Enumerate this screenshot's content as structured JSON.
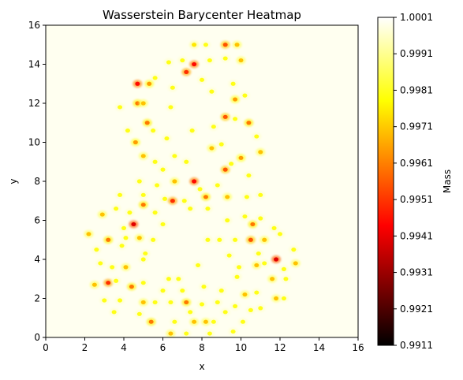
{
  "chart_data": {
    "type": "heatmap",
    "title": "Wasserstein Barycenter Heatmap",
    "xlabel": "x",
    "ylabel": "y",
    "xlim": [
      0,
      16
    ],
    "ylim": [
      0,
      16
    ],
    "x_ticks": [
      "0",
      "2",
      "4",
      "6",
      "8",
      "10",
      "12",
      "14",
      "16"
    ],
    "y_ticks": [
      "0",
      "2",
      "4",
      "6",
      "8",
      "10",
      "12",
      "14",
      "16"
    ],
    "colorbar": {
      "label": "Mass",
      "colormap": "hot",
      "range": [
        0.9911,
        1.0001
      ],
      "ticks": [
        "1.0001",
        "0.9991",
        "0.9981",
        "0.9971",
        "0.9961",
        "0.9951",
        "0.9941",
        "0.9931",
        "0.9921",
        "0.9911"
      ]
    },
    "background_value": 1.0001,
    "grid": false,
    "hotspots": [
      {
        "x": 7.6,
        "y": 15.0,
        "v": 0.9975
      },
      {
        "x": 8.2,
        "y": 15.0,
        "v": 0.998
      },
      {
        "x": 9.2,
        "y": 15.0,
        "v": 0.9955
      },
      {
        "x": 9.8,
        "y": 15.0,
        "v": 0.997
      },
      {
        "x": 6.3,
        "y": 14.1,
        "v": 0.998
      },
      {
        "x": 7.0,
        "y": 14.2,
        "v": 0.998
      },
      {
        "x": 7.6,
        "y": 14.0,
        "v": 0.9945
      },
      {
        "x": 8.4,
        "y": 14.2,
        "v": 0.998
      },
      {
        "x": 9.2,
        "y": 14.3,
        "v": 0.998
      },
      {
        "x": 10.0,
        "y": 14.2,
        "v": 0.997
      },
      {
        "x": 7.2,
        "y": 13.6,
        "v": 0.995
      },
      {
        "x": 5.6,
        "y": 13.3,
        "v": 0.998
      },
      {
        "x": 8.0,
        "y": 13.2,
        "v": 0.998
      },
      {
        "x": 4.7,
        "y": 13.0,
        "v": 0.9945
      },
      {
        "x": 5.3,
        "y": 13.0,
        "v": 0.9965
      },
      {
        "x": 6.5,
        "y": 12.8,
        "v": 0.998
      },
      {
        "x": 9.6,
        "y": 13.0,
        "v": 0.998
      },
      {
        "x": 4.7,
        "y": 12.0,
        "v": 0.996
      },
      {
        "x": 5.0,
        "y": 12.0,
        "v": 0.997
      },
      {
        "x": 6.4,
        "y": 11.8,
        "v": 0.998
      },
      {
        "x": 8.5,
        "y": 12.6,
        "v": 0.998
      },
      {
        "x": 9.7,
        "y": 12.2,
        "v": 0.9965
      },
      {
        "x": 10.2,
        "y": 12.4,
        "v": 0.998
      },
      {
        "x": 3.8,
        "y": 11.8,
        "v": 0.998
      },
      {
        "x": 5.2,
        "y": 11.0,
        "v": 0.996
      },
      {
        "x": 9.2,
        "y": 11.3,
        "v": 0.9955
      },
      {
        "x": 9.7,
        "y": 11.2,
        "v": 0.998
      },
      {
        "x": 8.6,
        "y": 10.8,
        "v": 0.998
      },
      {
        "x": 10.4,
        "y": 11.0,
        "v": 0.996
      },
      {
        "x": 4.2,
        "y": 10.6,
        "v": 0.998
      },
      {
        "x": 4.6,
        "y": 10.0,
        "v": 0.9965
      },
      {
        "x": 5.5,
        "y": 10.6,
        "v": 0.998
      },
      {
        "x": 6.2,
        "y": 10.2,
        "v": 0.998
      },
      {
        "x": 7.5,
        "y": 10.6,
        "v": 0.998
      },
      {
        "x": 8.5,
        "y": 9.7,
        "v": 0.997
      },
      {
        "x": 9.0,
        "y": 9.9,
        "v": 0.998
      },
      {
        "x": 11.0,
        "y": 9.5,
        "v": 0.997
      },
      {
        "x": 10.8,
        "y": 10.3,
        "v": 0.998
      },
      {
        "x": 5.0,
        "y": 9.3,
        "v": 0.997
      },
      {
        "x": 5.6,
        "y": 9.0,
        "v": 0.998
      },
      {
        "x": 6.0,
        "y": 8.6,
        "v": 0.998
      },
      {
        "x": 6.6,
        "y": 9.3,
        "v": 0.998
      },
      {
        "x": 7.2,
        "y": 9.0,
        "v": 0.998
      },
      {
        "x": 9.2,
        "y": 8.6,
        "v": 0.9955
      },
      {
        "x": 9.5,
        "y": 8.9,
        "v": 0.998
      },
      {
        "x": 10.0,
        "y": 9.2,
        "v": 0.9965
      },
      {
        "x": 10.4,
        "y": 8.3,
        "v": 0.998
      },
      {
        "x": 7.6,
        "y": 8.0,
        "v": 0.9945
      },
      {
        "x": 6.6,
        "y": 8.0,
        "v": 0.997
      },
      {
        "x": 7.9,
        "y": 7.6,
        "v": 0.998
      },
      {
        "x": 5.7,
        "y": 7.8,
        "v": 0.998
      },
      {
        "x": 4.8,
        "y": 8.0,
        "v": 0.998
      },
      {
        "x": 8.8,
        "y": 7.8,
        "v": 0.998
      },
      {
        "x": 3.8,
        "y": 7.3,
        "v": 0.998
      },
      {
        "x": 5.0,
        "y": 7.3,
        "v": 0.998
      },
      {
        "x": 6.1,
        "y": 7.1,
        "v": 0.998
      },
      {
        "x": 6.5,
        "y": 7.0,
        "v": 0.995
      },
      {
        "x": 7.1,
        "y": 7.0,
        "v": 0.998
      },
      {
        "x": 8.2,
        "y": 7.2,
        "v": 0.996
      },
      {
        "x": 9.3,
        "y": 7.2,
        "v": 0.997
      },
      {
        "x": 10.3,
        "y": 7.2,
        "v": 0.998
      },
      {
        "x": 11.0,
        "y": 7.3,
        "v": 0.998
      },
      {
        "x": 2.9,
        "y": 6.3,
        "v": 0.997
      },
      {
        "x": 3.6,
        "y": 6.6,
        "v": 0.998
      },
      {
        "x": 4.3,
        "y": 6.4,
        "v": 0.998
      },
      {
        "x": 5.0,
        "y": 6.8,
        "v": 0.996
      },
      {
        "x": 5.6,
        "y": 6.4,
        "v": 0.998
      },
      {
        "x": 7.4,
        "y": 6.6,
        "v": 0.998
      },
      {
        "x": 8.3,
        "y": 6.6,
        "v": 0.998
      },
      {
        "x": 9.3,
        "y": 6.0,
        "v": 0.998
      },
      {
        "x": 10.2,
        "y": 6.2,
        "v": 0.998
      },
      {
        "x": 11.0,
        "y": 6.1,
        "v": 0.998
      },
      {
        "x": 4.5,
        "y": 5.8,
        "v": 0.994
      },
      {
        "x": 4.0,
        "y": 5.6,
        "v": 0.998
      },
      {
        "x": 6.0,
        "y": 5.8,
        "v": 0.998
      },
      {
        "x": 10.6,
        "y": 5.8,
        "v": 0.996
      },
      {
        "x": 11.7,
        "y": 5.6,
        "v": 0.998
      },
      {
        "x": 2.2,
        "y": 5.3,
        "v": 0.997
      },
      {
        "x": 3.2,
        "y": 5.0,
        "v": 0.996
      },
      {
        "x": 4.1,
        "y": 5.1,
        "v": 0.998
      },
      {
        "x": 4.8,
        "y": 5.1,
        "v": 0.997
      },
      {
        "x": 5.5,
        "y": 5.0,
        "v": 0.998
      },
      {
        "x": 8.3,
        "y": 5.0,
        "v": 0.998
      },
      {
        "x": 8.9,
        "y": 5.0,
        "v": 0.998
      },
      {
        "x": 9.7,
        "y": 5.0,
        "v": 0.998
      },
      {
        "x": 10.5,
        "y": 5.0,
        "v": 0.9955
      },
      {
        "x": 11.2,
        "y": 5.0,
        "v": 0.997
      },
      {
        "x": 12.0,
        "y": 5.3,
        "v": 0.998
      },
      {
        "x": 2.6,
        "y": 4.5,
        "v": 0.998
      },
      {
        "x": 3.9,
        "y": 4.7,
        "v": 0.998
      },
      {
        "x": 5.1,
        "y": 4.3,
        "v": 0.998
      },
      {
        "x": 9.4,
        "y": 4.2,
        "v": 0.998
      },
      {
        "x": 10.9,
        "y": 4.3,
        "v": 0.998
      },
      {
        "x": 11.8,
        "y": 4.0,
        "v": 0.994
      },
      {
        "x": 12.7,
        "y": 4.5,
        "v": 0.998
      },
      {
        "x": 12.2,
        "y": 3.5,
        "v": 0.998
      },
      {
        "x": 12.8,
        "y": 3.8,
        "v": 0.997
      },
      {
        "x": 2.8,
        "y": 3.8,
        "v": 0.998
      },
      {
        "x": 3.4,
        "y": 3.6,
        "v": 0.998
      },
      {
        "x": 4.1,
        "y": 3.6,
        "v": 0.997
      },
      {
        "x": 5.0,
        "y": 4.0,
        "v": 0.998
      },
      {
        "x": 7.8,
        "y": 3.7,
        "v": 0.998
      },
      {
        "x": 9.9,
        "y": 3.6,
        "v": 0.998
      },
      {
        "x": 10.8,
        "y": 3.7,
        "v": 0.997
      },
      {
        "x": 11.2,
        "y": 3.8,
        "v": 0.998
      },
      {
        "x": 6.3,
        "y": 3.0,
        "v": 0.998
      },
      {
        "x": 6.8,
        "y": 3.0,
        "v": 0.998
      },
      {
        "x": 9.8,
        "y": 3.1,
        "v": 0.998
      },
      {
        "x": 11.6,
        "y": 3.0,
        "v": 0.997
      },
      {
        "x": 12.3,
        "y": 3.0,
        "v": 0.998
      },
      {
        "x": 2.5,
        "y": 2.7,
        "v": 0.997
      },
      {
        "x": 3.2,
        "y": 2.8,
        "v": 0.995
      },
      {
        "x": 3.6,
        "y": 2.9,
        "v": 0.998
      },
      {
        "x": 4.4,
        "y": 2.6,
        "v": 0.996
      },
      {
        "x": 5.0,
        "y": 2.8,
        "v": 0.998
      },
      {
        "x": 6.0,
        "y": 2.4,
        "v": 0.998
      },
      {
        "x": 7.0,
        "y": 2.4,
        "v": 0.998
      },
      {
        "x": 8.1,
        "y": 2.6,
        "v": 0.998
      },
      {
        "x": 9.0,
        "y": 2.4,
        "v": 0.998
      },
      {
        "x": 10.2,
        "y": 2.2,
        "v": 0.997
      },
      {
        "x": 10.8,
        "y": 2.3,
        "v": 0.998
      },
      {
        "x": 3.0,
        "y": 1.9,
        "v": 0.998
      },
      {
        "x": 3.8,
        "y": 1.9,
        "v": 0.998
      },
      {
        "x": 5.0,
        "y": 1.8,
        "v": 0.997
      },
      {
        "x": 5.6,
        "y": 1.8,
        "v": 0.998
      },
      {
        "x": 6.4,
        "y": 1.8,
        "v": 0.998
      },
      {
        "x": 7.2,
        "y": 1.8,
        "v": 0.996
      },
      {
        "x": 8.0,
        "y": 1.7,
        "v": 0.998
      },
      {
        "x": 8.8,
        "y": 1.8,
        "v": 0.998
      },
      {
        "x": 9.7,
        "y": 1.6,
        "v": 0.998
      },
      {
        "x": 11.8,
        "y": 2.0,
        "v": 0.997
      },
      {
        "x": 12.2,
        "y": 2.0,
        "v": 0.998
      },
      {
        "x": 3.5,
        "y": 1.3,
        "v": 0.998
      },
      {
        "x": 4.8,
        "y": 1.2,
        "v": 0.998
      },
      {
        "x": 7.4,
        "y": 1.3,
        "v": 0.998
      },
      {
        "x": 9.2,
        "y": 1.3,
        "v": 0.998
      },
      {
        "x": 10.5,
        "y": 1.4,
        "v": 0.998
      },
      {
        "x": 11.0,
        "y": 1.5,
        "v": 0.998
      },
      {
        "x": 5.4,
        "y": 0.8,
        "v": 0.996
      },
      {
        "x": 6.6,
        "y": 0.8,
        "v": 0.998
      },
      {
        "x": 7.6,
        "y": 0.8,
        "v": 0.997
      },
      {
        "x": 8.2,
        "y": 0.8,
        "v": 0.997
      },
      {
        "x": 8.6,
        "y": 0.8,
        "v": 0.998
      },
      {
        "x": 10.1,
        "y": 0.8,
        "v": 0.998
      },
      {
        "x": 6.4,
        "y": 0.2,
        "v": 0.997
      },
      {
        "x": 7.2,
        "y": 0.2,
        "v": 0.998
      },
      {
        "x": 8.4,
        "y": 0.2,
        "v": 0.998
      },
      {
        "x": 9.6,
        "y": 0.3,
        "v": 0.998
      }
    ]
  }
}
